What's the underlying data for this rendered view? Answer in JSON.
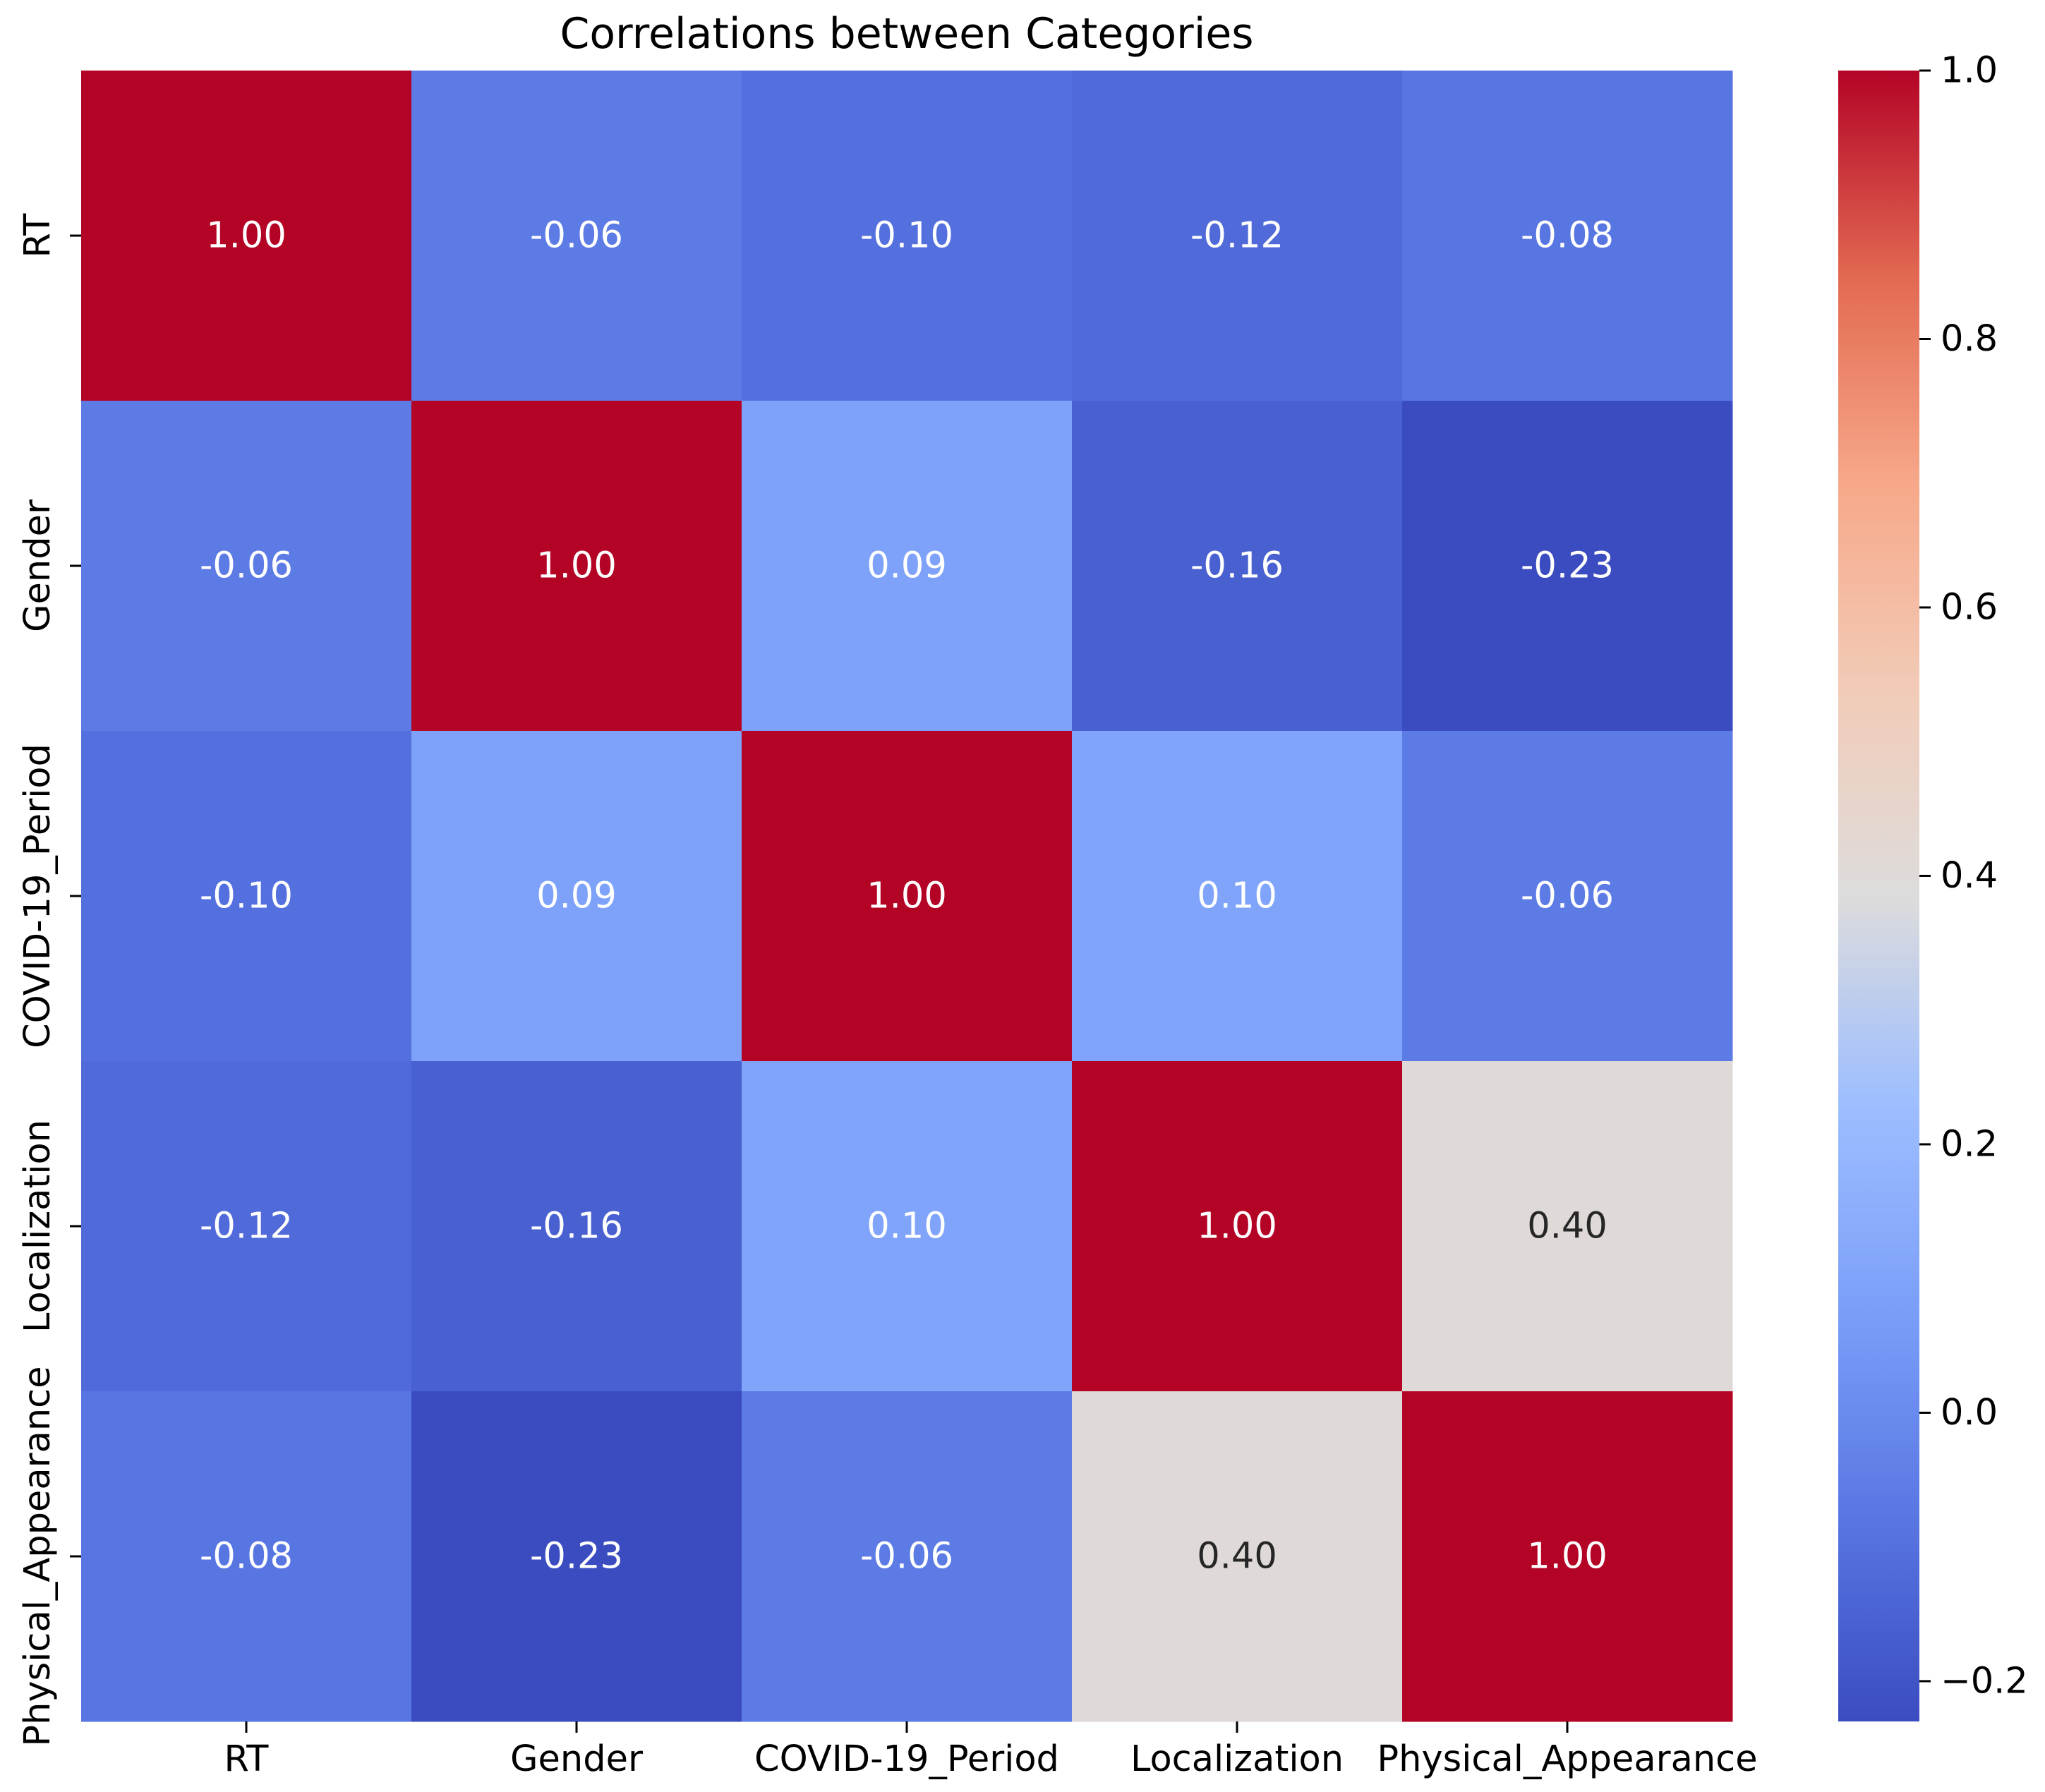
{
  "chart_data": {
    "type": "heatmap",
    "title": "Correlations between Categories",
    "xlabel": "",
    "ylabel": "",
    "x_categories": [
      "RT",
      "Gender",
      "COVID-19_Period",
      "Localization",
      "Physical_Appearance"
    ],
    "y_categories": [
      "RT",
      "Gender",
      "COVID-19_Period",
      "Localization",
      "Physical_Appearance"
    ],
    "values": [
      [
        1.0,
        -0.06,
        -0.1,
        -0.12,
        -0.08
      ],
      [
        -0.06,
        1.0,
        0.09,
        -0.16,
        -0.23
      ],
      [
        -0.1,
        0.09,
        1.0,
        0.1,
        -0.06
      ],
      [
        -0.12,
        -0.16,
        0.1,
        1.0,
        0.4
      ],
      [
        -0.08,
        -0.23,
        -0.06,
        0.4,
        1.0
      ]
    ],
    "annotation_labels": [
      [
        "1.00",
        "-0.06",
        "-0.10",
        "-0.12",
        "-0.08"
      ],
      [
        "-0.06",
        "1.00",
        "0.09",
        "-0.16",
        "-0.23"
      ],
      [
        "-0.10",
        "0.09",
        "1.00",
        "0.10",
        "-0.06"
      ],
      [
        "-0.12",
        "-0.16",
        "0.10",
        "1.00",
        "0.40"
      ],
      [
        "-0.08",
        "-0.23",
        "-0.06",
        "0.40",
        "1.00"
      ]
    ],
    "colormap": "coolwarm",
    "vmin": -0.23,
    "vmax": 1.0,
    "colorbar": {
      "ticks": [
        -0.2,
        0.0,
        0.2,
        0.4,
        0.6,
        0.8,
        1.0
      ],
      "tick_labels": [
        "−0.2",
        "0.0",
        "0.2",
        "0.4",
        "0.6",
        "0.8",
        "1.0"
      ],
      "position": "right"
    },
    "colormap_stops": [
      [
        0.0,
        "#3b4cc0"
      ],
      [
        0.125,
        "#5977e3"
      ],
      [
        0.25,
        "#7b9ff9"
      ],
      [
        0.375,
        "#9ebeff"
      ],
      [
        0.5,
        "#dddcdc"
      ],
      [
        0.625,
        "#f2cbb7"
      ],
      [
        0.75,
        "#f7a889"
      ],
      [
        0.875,
        "#e26952"
      ],
      [
        1.0,
        "#b40426"
      ]
    ],
    "annotation_colors": {
      "light_text": "#ffffff",
      "dark_text": "#262626"
    }
  }
}
